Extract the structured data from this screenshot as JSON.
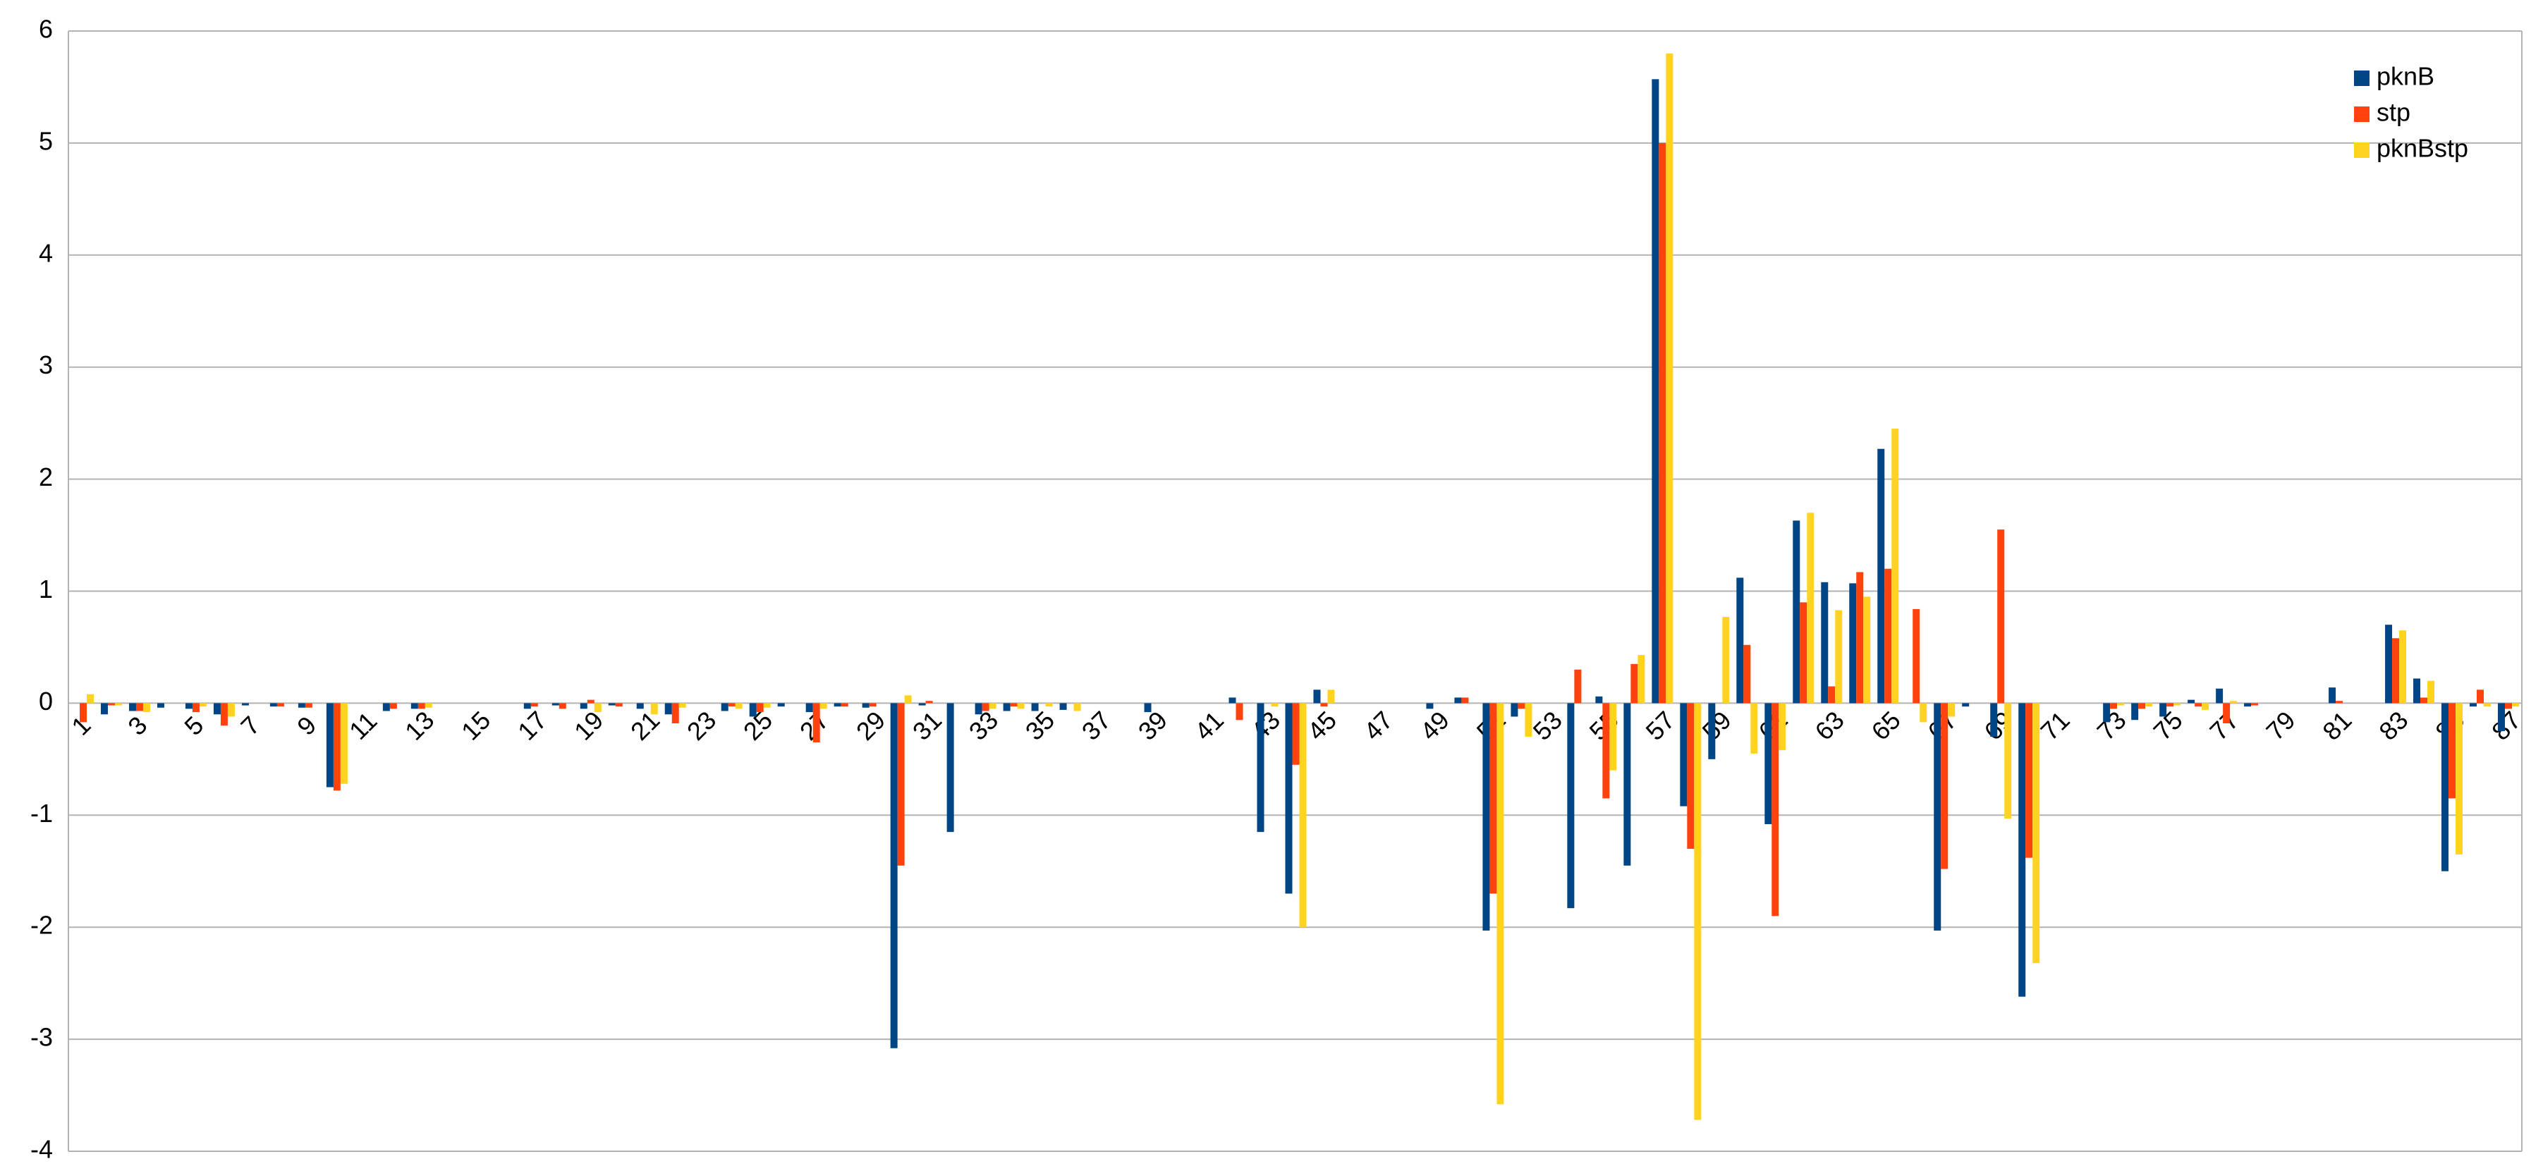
{
  "chart_data": {
    "type": "bar",
    "categories": [
      1,
      null,
      3,
      null,
      5,
      null,
      7,
      null,
      9,
      null,
      11,
      null,
      13,
      null,
      15,
      null,
      17,
      null,
      19,
      null,
      21,
      null,
      23,
      null,
      25,
      null,
      27,
      null,
      29,
      null,
      31,
      null,
      33,
      null,
      35,
      null,
      37,
      null,
      39,
      null,
      41,
      null,
      43,
      null,
      45,
      null,
      47,
      null,
      49,
      null,
      51,
      null,
      53,
      null,
      55,
      null,
      57,
      null,
      59,
      null,
      61,
      null,
      63,
      null,
      65,
      null,
      67,
      null,
      69,
      null,
      71,
      null,
      73,
      null,
      75,
      null,
      77,
      null,
      79,
      null,
      81,
      null,
      83,
      null,
      85,
      null,
      87
    ],
    "series": [
      {
        "name": "pknB",
        "color": "#004586",
        "values": [
          0,
          -0.1,
          -0.07,
          -0.04,
          -0.05,
          -0.1,
          -0.02,
          -0.03,
          -0.04,
          -0.75,
          0,
          -0.07,
          -0.05,
          0,
          0,
          0,
          -0.05,
          -0.02,
          -0.05,
          -0.02,
          -0.05,
          -0.1,
          0,
          -0.07,
          -0.12,
          -0.03,
          -0.08,
          -0.03,
          -0.04,
          -3.08,
          -0.02,
          -1.15,
          -0.1,
          -0.07,
          -0.07,
          -0.06,
          0,
          0,
          -0.08,
          0,
          0,
          0.05,
          -1.15,
          -1.7,
          0.12,
          0,
          0,
          0,
          -0.05,
          0.05,
          -2.03,
          -0.12,
          0,
          -1.83,
          0.06,
          -1.45,
          5.57,
          -0.92,
          -0.5,
          1.12,
          -1.08,
          1.63,
          1.08,
          1.07,
          2.27,
          0,
          -2.03,
          -0.03,
          -0.3,
          -2.62,
          0,
          0,
          -0.17,
          -0.15,
          -0.12,
          0.03,
          0.13,
          -0.03,
          0,
          0,
          0.14,
          0,
          0.7,
          0.22,
          -1.5,
          -0.03,
          -0.25
        ]
      },
      {
        "name": "stp",
        "color": "#ff420e",
        "values": [
          -0.17,
          -0.02,
          -0.07,
          0,
          -0.08,
          -0.2,
          0,
          -0.03,
          -0.04,
          -0.78,
          0,
          -0.05,
          -0.05,
          0,
          0,
          0,
          -0.03,
          -0.05,
          0.03,
          -0.03,
          0,
          -0.18,
          0,
          -0.03,
          -0.08,
          0,
          -0.35,
          -0.03,
          -0.03,
          -1.45,
          0.02,
          0,
          -0.07,
          -0.03,
          0,
          0,
          0,
          0,
          0,
          0,
          0,
          -0.15,
          0,
          -0.55,
          -0.03,
          0,
          0,
          0,
          0,
          0.05,
          -1.7,
          -0.05,
          0,
          0.3,
          -0.85,
          0.35,
          5.0,
          -1.3,
          0,
          0.52,
          -1.9,
          0.9,
          0.15,
          1.17,
          1.2,
          0.84,
          -1.48,
          0,
          1.55,
          -1.38,
          0,
          0,
          -0.05,
          -0.05,
          -0.03,
          -0.03,
          -0.18,
          -0.02,
          0,
          0,
          0.02,
          0,
          0.58,
          0.05,
          -0.85,
          0.12,
          -0.05
        ]
      },
      {
        "name": "pknBstp",
        "color": "#ffd320",
        "values": [
          0.08,
          -0.02,
          -0.08,
          0,
          -0.03,
          -0.12,
          0,
          0,
          0,
          -0.72,
          0,
          0,
          -0.04,
          0,
          0,
          0,
          0,
          0,
          -0.08,
          0,
          -0.1,
          -0.04,
          0,
          -0.05,
          -0.04,
          0,
          -0.05,
          0,
          0,
          0.07,
          0,
          0,
          -0.05,
          -0.05,
          -0.03,
          -0.07,
          0,
          0,
          0,
          0,
          0,
          0,
          -0.03,
          -2.0,
          0.12,
          0,
          0,
          0,
          0,
          0,
          -3.58,
          -0.3,
          0,
          0,
          -0.6,
          0.43,
          5.8,
          -3.72,
          0.77,
          -0.45,
          -0.42,
          1.7,
          0.83,
          0.95,
          2.45,
          -0.17,
          -0.12,
          0,
          -1.03,
          -2.32,
          0,
          0,
          -0.02,
          -0.03,
          -0.02,
          -0.06,
          0.02,
          0,
          0,
          0,
          0,
          0,
          0.65,
          0.2,
          -1.35,
          -0.03,
          -0.03
        ]
      }
    ],
    "ylim": [
      -4,
      6
    ],
    "yticks": [
      -4,
      -3,
      -2,
      -1,
      0,
      1,
      2,
      3,
      4,
      5,
      6
    ],
    "grid": true,
    "legend": "top-right"
  }
}
